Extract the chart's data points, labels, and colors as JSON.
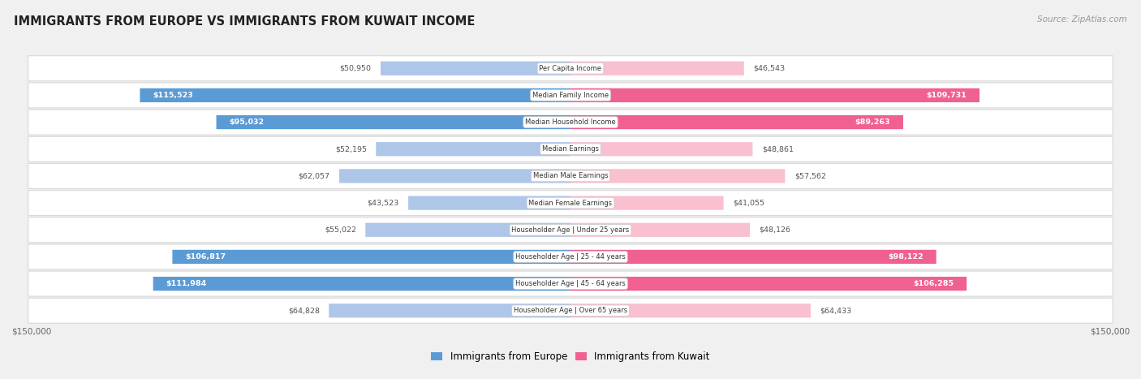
{
  "title": "IMMIGRANTS FROM EUROPE VS IMMIGRANTS FROM KUWAIT INCOME",
  "source": "Source: ZipAtlas.com",
  "categories": [
    "Per Capita Income",
    "Median Family Income",
    "Median Household Income",
    "Median Earnings",
    "Median Male Earnings",
    "Median Female Earnings",
    "Householder Age | Under 25 years",
    "Householder Age | 25 - 44 years",
    "Householder Age | 45 - 64 years",
    "Householder Age | Over 65 years"
  ],
  "europe_values": [
    50950,
    115523,
    95032,
    52195,
    62057,
    43523,
    55022,
    106817,
    111984,
    64828
  ],
  "kuwait_values": [
    46543,
    109731,
    89263,
    48861,
    57562,
    41055,
    48126,
    98122,
    106285,
    64433
  ],
  "europe_labels": [
    "$50,950",
    "$115,523",
    "$95,032",
    "$52,195",
    "$62,057",
    "$43,523",
    "$55,022",
    "$106,817",
    "$111,984",
    "$64,828"
  ],
  "kuwait_labels": [
    "$46,543",
    "$109,731",
    "$89,263",
    "$48,861",
    "$57,562",
    "$41,055",
    "$48,126",
    "$98,122",
    "$106,285",
    "$64,433"
  ],
  "europe_color_light": "#aec6e8",
  "europe_color_dark": "#5b9bd5",
  "kuwait_color_light": "#f9c0d0",
  "kuwait_color_dark": "#f06090",
  "europe_label_inside_threshold": 80000,
  "kuwait_label_inside_threshold": 80000,
  "max_value": 150000,
  "bar_height": 0.52,
  "background_color": "#f0f0f0",
  "row_bg_color": "#ffffff",
  "legend_europe": "Immigrants from Europe",
  "legend_kuwait": "Immigrants from Kuwait"
}
